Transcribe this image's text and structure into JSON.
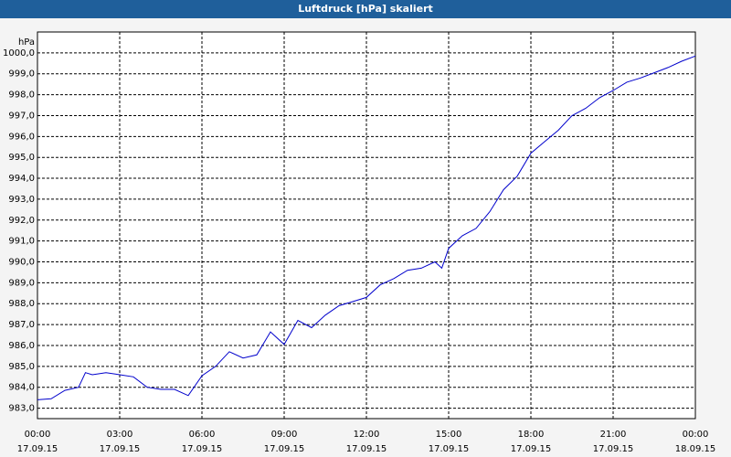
{
  "chart_data": {
    "type": "line",
    "title": "Luftdruck [hPa] skaliert",
    "y_label": "hPa",
    "x": [
      0,
      0.5,
      1,
      1.5,
      1.75,
      2,
      2.5,
      3,
      3.5,
      4,
      4.5,
      5,
      5.5,
      6,
      6.5,
      7,
      7.5,
      8,
      8.5,
      9,
      9.5,
      10,
      10.5,
      11,
      11.5,
      12,
      12.5,
      13,
      13.5,
      14,
      14.5,
      14.75,
      15,
      15.5,
      16,
      16.5,
      17,
      17.5,
      18,
      18.5,
      19,
      19.5,
      20,
      20.5,
      21,
      21.5,
      22,
      22.5,
      23,
      23.5,
      24
    ],
    "series": [
      {
        "name": "Luftdruck",
        "color": "#0000cc",
        "values": [
          983.4,
          983.45,
          983.85,
          984.0,
          984.7,
          984.6,
          984.7,
          984.6,
          984.5,
          984.0,
          983.9,
          983.9,
          983.6,
          984.55,
          985.0,
          985.7,
          985.4,
          985.55,
          986.65,
          986.05,
          987.2,
          986.85,
          987.45,
          987.9,
          988.1,
          988.3,
          988.9,
          989.2,
          989.6,
          989.7,
          990.0,
          989.7,
          990.65,
          991.25,
          991.6,
          992.4,
          993.45,
          994.1,
          995.2,
          995.75,
          996.3,
          997.0,
          997.35,
          997.85,
          998.2,
          998.6,
          998.8,
          999.05,
          999.3,
          999.6,
          999.85
        ]
      }
    ],
    "xlim": [
      0,
      24
    ],
    "xticks": [
      {
        "value": 0,
        "label": "00:00",
        "date": "17.09.15"
      },
      {
        "value": 3,
        "label": "03:00",
        "date": "17.09.15"
      },
      {
        "value": 6,
        "label": "06:00",
        "date": "17.09.15"
      },
      {
        "value": 9,
        "label": "09:00",
        "date": "17.09.15"
      },
      {
        "value": 12,
        "label": "12:00",
        "date": "17.09.15"
      },
      {
        "value": 15,
        "label": "15:00",
        "date": "17.09.15"
      },
      {
        "value": 18,
        "label": "18:00",
        "date": "17.09.15"
      },
      {
        "value": 21,
        "label": "21:00",
        "date": "17.09.15"
      },
      {
        "value": 24,
        "label": "00:00",
        "date": "18.09.15"
      }
    ],
    "ylim": [
      982.5,
      1001
    ],
    "yticks": [
      {
        "value": 983,
        "label": "983,0"
      },
      {
        "value": 984,
        "label": "984,0"
      },
      {
        "value": 985,
        "label": "985,0"
      },
      {
        "value": 986,
        "label": "986,0"
      },
      {
        "value": 987,
        "label": "987,0"
      },
      {
        "value": 988,
        "label": "988,0"
      },
      {
        "value": 989,
        "label": "989,0"
      },
      {
        "value": 990,
        "label": "990,0"
      },
      {
        "value": 991,
        "label": "991,0"
      },
      {
        "value": 992,
        "label": "992,0"
      },
      {
        "value": 993,
        "label": "993,0"
      },
      {
        "value": 994,
        "label": "994,0"
      },
      {
        "value": 995,
        "label": "995,0"
      },
      {
        "value": 996,
        "label": "996,0"
      },
      {
        "value": 997,
        "label": "997,0"
      },
      {
        "value": 998,
        "label": "998,0"
      },
      {
        "value": 999,
        "label": "999,0"
      },
      {
        "value": 1000,
        "label": "1000,0"
      }
    ],
    "grid": true
  }
}
